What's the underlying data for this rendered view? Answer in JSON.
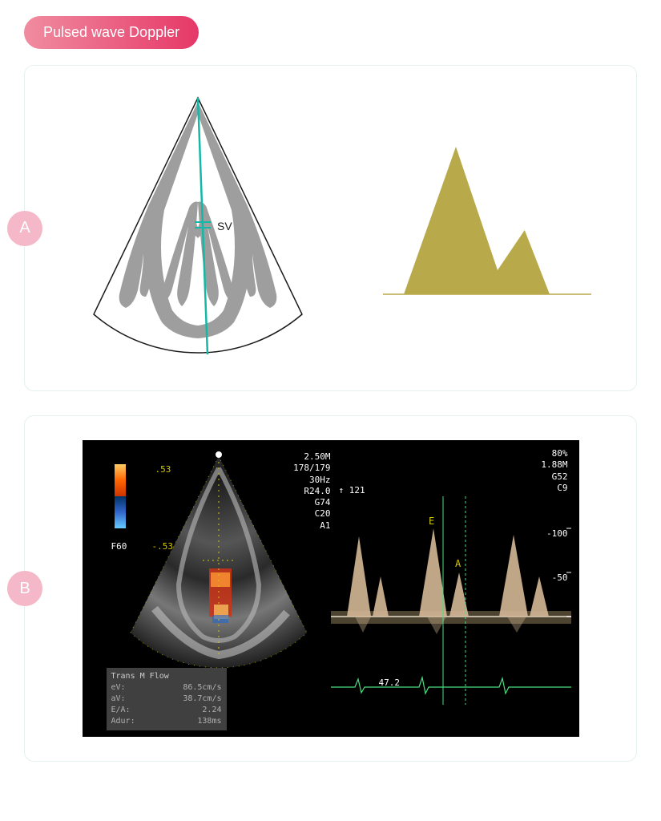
{
  "title": {
    "text": "Pulsed wave Doppler",
    "gradient_from": "#f08ca0",
    "gradient_to": "#e63868",
    "text_color": "#ffffff"
  },
  "panel_a": {
    "label": "A",
    "label_bg": "#f5b8c8",
    "border_color": "#e5f0f0",
    "heart_diagram": {
      "outline_color": "#1a1a1a",
      "tissue_color": "#9e9e9e",
      "scan_line_color": "#14b8a6",
      "sv_label": "SV",
      "sv_label_color": "#1a1a1a",
      "sv_marker_color": "#14b8a6"
    },
    "waveform": {
      "fill_color": "#b8a94a",
      "baseline_color": "#b8a94a",
      "points": [
        [
          0,
          100
        ],
        [
          10,
          100
        ],
        [
          35,
          8
        ],
        [
          55,
          85
        ],
        [
          68,
          60
        ],
        [
          80,
          100
        ],
        [
          100,
          100
        ]
      ]
    }
  },
  "panel_b": {
    "label": "B",
    "label_bg": "#f5b8c8",
    "ultrasound": {
      "bg_color": "#000000",
      "text_color_white": "#ffffff",
      "text_color_yellow": "#d4c800",
      "text_color_green": "#4ade80",
      "text_color_gray": "#b0b0b0",
      "scale_top": ".53",
      "scale_bottom": "-.53",
      "f_label": "F60",
      "params": {
        "depth": "2.50M",
        "frames": "178/179",
        "hz": "30Hz",
        "r": "R24.0",
        "g": "G74",
        "c": "C20",
        "a": "A1",
        "hr_arrow": "↑ 121"
      },
      "right_params": {
        "pct": "80%",
        "m": "1.88M",
        "g": "G52",
        "c": "C9"
      },
      "y_ticks": [
        "-100",
        "-50"
      ],
      "time_value": "47.2",
      "wave_labels": {
        "e": "E",
        "a": "A"
      },
      "measurements": {
        "title": "Trans M Flow",
        "rows": [
          {
            "label": "eV:",
            "value": "86.5cm/s"
          },
          {
            "label": "aV:",
            "value": "38.7cm/s"
          },
          {
            "label": "E/A:",
            "value": "2.24"
          },
          {
            "label": "Adur:",
            "value": "138ms"
          }
        ]
      },
      "doppler_flow_color_top": "#ff9933",
      "doppler_flow_color_bot": "#3399ff",
      "spectral_wave_color": "#d4b896",
      "ecg_line_color": "#4ade80",
      "cursor_line_color": "#4ade80"
    }
  }
}
